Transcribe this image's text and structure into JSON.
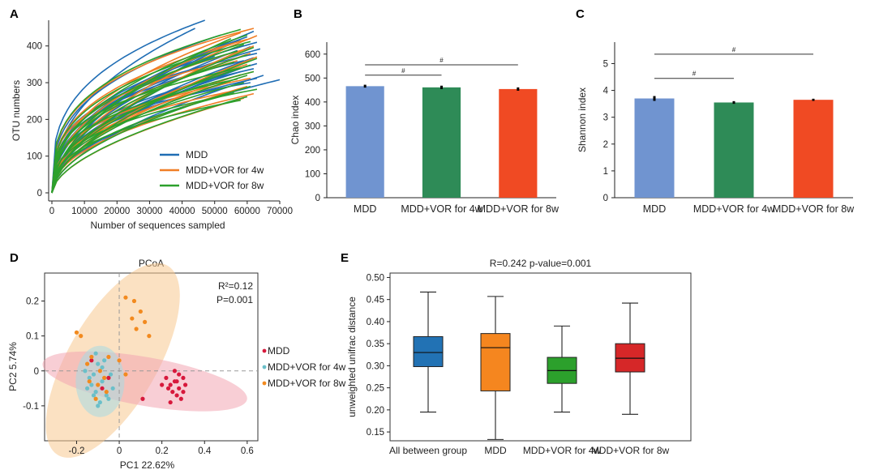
{
  "panels": {
    "A": {
      "letter": "A",
      "chart_data": {
        "type": "line",
        "title": "",
        "xlabel": "Number of sequences sampled",
        "ylabel": "OTU numbers",
        "xlim": [
          0,
          70000
        ],
        "ylim": [
          0,
          470
        ],
        "xticks": [
          0,
          10000,
          20000,
          30000,
          40000,
          50000,
          60000,
          70000
        ],
        "yticks": [
          0,
          100,
          200,
          300,
          400
        ],
        "series": [
          {
            "name": "MDD",
            "color": "#1f6db4",
            "curves": [
              [
                47000,
                470
              ],
              [
                44000,
                448
              ],
              [
                62000,
                440
              ],
              [
                52000,
                430
              ],
              [
                60000,
                425
              ],
              [
                58000,
                418
              ],
              [
                63000,
                410
              ],
              [
                55000,
                405
              ],
              [
                61000,
                398
              ],
              [
                64000,
                392
              ],
              [
                57000,
                388
              ],
              [
                63000,
                380
              ],
              [
                50000,
                372
              ],
              [
                62000,
                368
              ],
              [
                59000,
                360
              ],
              [
                63000,
                352
              ],
              [
                60000,
                345
              ],
              [
                62000,
                338
              ],
              [
                58000,
                330
              ],
              [
                65000,
                320
              ],
              [
                63000,
                312
              ],
              [
                70000,
                308
              ],
              [
                61000,
                300
              ]
            ]
          },
          {
            "name": "MDD+VOR for 4w",
            "color": "#f07e26",
            "curves": [
              [
                62000,
                448
              ],
              [
                58000,
                436
              ],
              [
                63000,
                428
              ],
              [
                60000,
                418
              ],
              [
                56000,
                408
              ],
              [
                62000,
                400
              ],
              [
                59000,
                390
              ],
              [
                61000,
                380
              ],
              [
                63000,
                370
              ],
              [
                57000,
                360
              ],
              [
                60000,
                350
              ],
              [
                45000,
                338
              ],
              [
                62000,
                330
              ],
              [
                58000,
                322
              ],
              [
                61000,
                312
              ],
              [
                55000,
                302
              ],
              [
                60000,
                290
              ],
              [
                57000,
                280
              ],
              [
                62000,
                270
              ],
              [
                59000,
                258
              ]
            ]
          },
          {
            "name": "MDD+VOR for 8w",
            "color": "#2ca02c",
            "curves": [
              [
                58000,
                445
              ],
              [
                60000,
                430
              ],
              [
                55000,
                420
              ],
              [
                61000,
                412
              ],
              [
                59000,
                404
              ],
              [
                62000,
                396
              ],
              [
                57000,
                386
              ],
              [
                60000,
                376
              ],
              [
                63000,
                366
              ],
              [
                56000,
                356
              ],
              [
                61000,
                348
              ],
              [
                58000,
                340
              ],
              [
                62000,
                330
              ],
              [
                60000,
                320
              ],
              [
                57000,
                310
              ],
              [
                59000,
                300
              ],
              [
                61000,
                290
              ],
              [
                63000,
                282
              ],
              [
                56000,
                272
              ],
              [
                60000,
                262
              ],
              [
                58000,
                252
              ]
            ]
          }
        ],
        "legend": [
          "MDD",
          "MDD+VOR for 4w",
          "MDD+VOR for 8w"
        ]
      }
    },
    "B": {
      "letter": "B",
      "chart_data": {
        "type": "bar",
        "title": "",
        "xlabel": "",
        "ylabel": "Chao index",
        "ylim": [
          0,
          650
        ],
        "yticks": [
          0,
          100,
          200,
          300,
          400,
          500,
          600
        ],
        "categories": [
          "MDD",
          "MDD+VOR for 4w",
          "MDD+VOR for 8w"
        ],
        "values": [
          466,
          461,
          454
        ],
        "errors": [
          6,
          7,
          7
        ],
        "colors": [
          "#7094d0",
          "#2e8b57",
          "#f04a23"
        ],
        "significance": [
          {
            "from": 0,
            "to": 1,
            "label": "#",
            "y": 512
          },
          {
            "from": 0,
            "to": 2,
            "label": "#",
            "y": 555
          }
        ]
      }
    },
    "C": {
      "letter": "C",
      "chart_data": {
        "type": "bar",
        "title": "",
        "xlabel": "",
        "ylabel": "Shannon index",
        "ylim": [
          0,
          5.8
        ],
        "yticks": [
          0,
          1,
          2,
          3,
          4,
          5
        ],
        "categories": [
          "MDD",
          "MDD+VOR for 4w",
          "MDD+VOR for 8w"
        ],
        "values": [
          3.7,
          3.55,
          3.65
        ],
        "errors": [
          0.09,
          0.05,
          0.04
        ],
        "colors": [
          "#7094d0",
          "#2e8b57",
          "#f04a23"
        ],
        "significance": [
          {
            "from": 0,
            "to": 1,
            "label": "#",
            "y": 4.45
          },
          {
            "from": 0,
            "to": 2,
            "label": "#",
            "y": 5.35
          }
        ]
      }
    },
    "D": {
      "letter": "D",
      "chart_data": {
        "type": "scatter",
        "title": "PCoA",
        "xlabel": "PC1 22.62%",
        "ylabel": "PC2 5.74%",
        "xlim": [
          -0.35,
          0.65
        ],
        "ylim": [
          -0.2,
          0.28
        ],
        "xticks": [
          -0.2,
          0,
          0.2,
          0.4,
          0.6
        ],
        "yticks": [
          -0.1,
          0,
          0.1,
          0.2
        ],
        "ytick_labels": [
          "-0.1",
          "0",
          "0.1",
          "0.2"
        ],
        "xtick_labels": [
          "-0.2",
          "0",
          "0.2",
          "0.4",
          "0.6"
        ],
        "annotations": [
          "R²=0.12",
          "P=0.001"
        ],
        "series": [
          {
            "name": "MDD",
            "color": "#d7193c",
            "points": [
              [
                0.22,
                -0.02
              ],
              [
                0.24,
                -0.04
              ],
              [
                0.26,
                -0.03
              ],
              [
                0.28,
                -0.05
              ],
              [
                0.3,
                -0.02
              ],
              [
                0.27,
                -0.07
              ],
              [
                0.25,
                -0.06
              ],
              [
                0.29,
                -0.08
              ],
              [
                0.23,
                -0.05
              ],
              [
                0.31,
                -0.04
              ],
              [
                0.26,
                0.0
              ],
              [
                0.28,
                -0.01
              ],
              [
                0.24,
                -0.09
              ],
              [
                0.3,
                -0.06
              ],
              [
                0.27,
                -0.03
              ],
              [
                0.11,
                -0.08
              ],
              [
                0.2,
                -0.04
              ],
              [
                -0.08,
                -0.05
              ],
              [
                -0.13,
                0.03
              ],
              [
                -0.05,
                -0.02
              ]
            ]
          },
          {
            "name": "MDD+VOR for 4w",
            "color": "#6bbfc9",
            "points": [
              [
                -0.1,
                0.02
              ],
              [
                -0.12,
                -0.01
              ],
              [
                -0.08,
                -0.03
              ],
              [
                -0.15,
                -0.05
              ],
              [
                -0.06,
                -0.07
              ],
              [
                -0.11,
                0.05
              ],
              [
                -0.09,
                -0.09
              ],
              [
                -0.14,
                -0.02
              ],
              [
                -0.07,
                0.03
              ],
              [
                -0.03,
                -0.05
              ],
              [
                -0.12,
                -0.07
              ],
              [
                -0.1,
                -0.1
              ],
              [
                -0.16,
                0.0
              ],
              [
                -0.05,
                -0.08
              ],
              [
                -0.13,
                -0.04
              ],
              [
                -0.08,
                0.01
              ],
              [
                -0.11,
                -0.06
              ],
              [
                -0.04,
                -0.01
              ]
            ]
          },
          {
            "name": "MDD+VOR for 8w",
            "color": "#f28a1f",
            "points": [
              [
                0.03,
                0.21
              ],
              [
                0.07,
                0.2
              ],
              [
                0.1,
                0.17
              ],
              [
                0.12,
                0.14
              ],
              [
                0.08,
                0.12
              ],
              [
                0.14,
                0.1
              ],
              [
                0.06,
                0.15
              ],
              [
                -0.2,
                0.11
              ],
              [
                -0.18,
                0.1
              ],
              [
                -0.13,
                0.04
              ],
              [
                -0.09,
                0.0
              ],
              [
                -0.1,
                -0.04
              ],
              [
                -0.07,
                -0.02
              ],
              [
                -0.14,
                -0.03
              ],
              [
                -0.05,
                0.04
              ],
              [
                0.03,
                -0.01
              ],
              [
                -0.11,
                -0.08
              ],
              [
                -0.06,
                -0.06
              ],
              [
                -0.15,
                0.02
              ],
              [
                0.0,
                0.03
              ]
            ]
          }
        ],
        "legend": [
          "MDD",
          "MDD+VOR for 4w",
          "MDD+VOR for 8w"
        ]
      }
    },
    "E": {
      "letter": "E",
      "chart_data": {
        "type": "box",
        "title": "R=0.242 p-value=0.001",
        "xlabel": "",
        "ylabel": "unweighted unifrac distance",
        "ylim": [
          0.13,
          0.51
        ],
        "yticks": [
          0.15,
          0.2,
          0.25,
          0.3,
          0.35,
          0.4,
          0.45,
          0.5
        ],
        "ytick_labels": [
          "0.15",
          "0.20",
          "0.25",
          "0.30",
          "0.35",
          "0.40",
          "0.45",
          "0.50"
        ],
        "categories": [
          "All between group",
          "MDD",
          "MDD+VOR for 4w",
          "MDD+VOR for 8w"
        ],
        "boxes": [
          {
            "min": 0.195,
            "q1": 0.298,
            "median": 0.33,
            "q3": 0.366,
            "max": 0.467,
            "color": "#2272b4"
          },
          {
            "min": 0.133,
            "q1": 0.243,
            "median": 0.341,
            "q3": 0.373,
            "max": 0.457,
            "color": "#f5861f"
          },
          {
            "min": 0.195,
            "q1": 0.26,
            "median": 0.289,
            "q3": 0.319,
            "max": 0.39,
            "color": "#2ca02c"
          },
          {
            "min": 0.19,
            "q1": 0.286,
            "median": 0.317,
            "q3": 0.35,
            "max": 0.442,
            "color": "#d62728"
          }
        ]
      }
    }
  }
}
